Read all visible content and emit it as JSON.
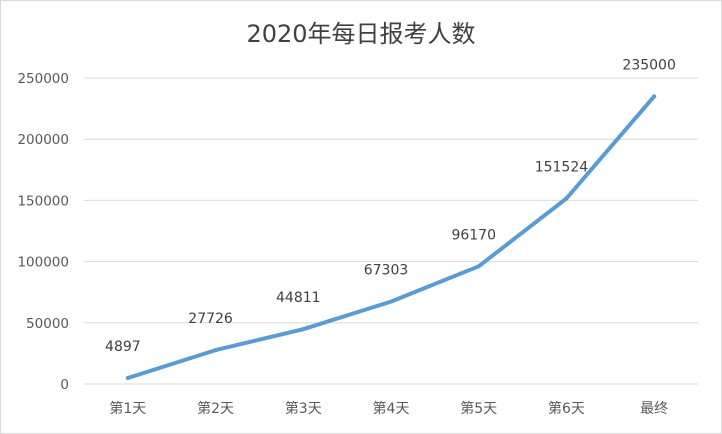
{
  "chart_data": {
    "type": "line",
    "title": "2020年每日报考人数",
    "categories": [
      "第1天",
      "第2天",
      "第3天",
      "第4天",
      "第5天",
      "第6天",
      "最终"
    ],
    "series": [
      {
        "values": [
          4897,
          27726,
          44811,
          67303,
          96170,
          151524,
          235000
        ]
      }
    ],
    "data_labels": [
      "4897",
      "27726",
      "44811",
      "67303",
      "96170",
      "151524",
      "235000"
    ],
    "y_ticks": [
      "0",
      "50000",
      "100000",
      "150000",
      "200000",
      "250000"
    ],
    "ylim": [
      0,
      250000
    ],
    "grid": true,
    "legend": "none",
    "colors": {
      "line": "#5b9bd5",
      "grid": "#d9d9d9",
      "text": "#595959",
      "title": "#404040"
    }
  }
}
